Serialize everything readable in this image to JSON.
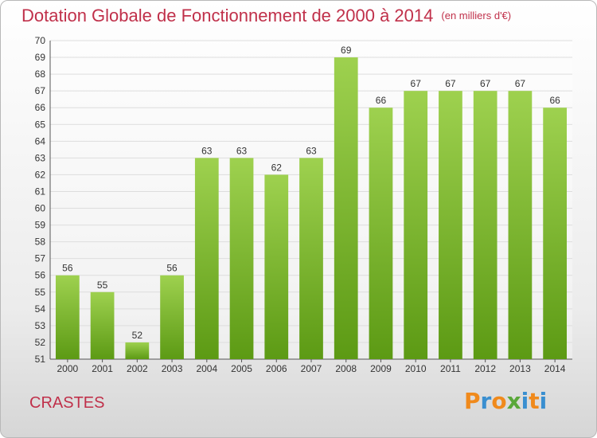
{
  "header": {
    "title": "Dotation Globale de Fonctionnement de 2000 à 2014",
    "unit": "(en milliers d'€)"
  },
  "footer": {
    "commune": "CRASTES",
    "logo_text": "Proxiti"
  },
  "colors": {
    "title": "#c0304a",
    "bar_top": "#9ed14f",
    "bar_bottom": "#5c9a14"
  },
  "chart_data": {
    "type": "bar",
    "categories": [
      "2000",
      "2001",
      "2002",
      "2003",
      "2004",
      "2005",
      "2006",
      "2007",
      "2008",
      "2009",
      "2010",
      "2011",
      "2012",
      "2013",
      "2014"
    ],
    "values": [
      56,
      55,
      52,
      56,
      63,
      63,
      62,
      63,
      69,
      66,
      67,
      67,
      67,
      67,
      66
    ],
    "ylim": [
      51,
      70
    ],
    "yticks": [
      51,
      52,
      53,
      54,
      55,
      56,
      57,
      58,
      59,
      60,
      61,
      62,
      63,
      64,
      65,
      66,
      67,
      68,
      69,
      70
    ],
    "grid": true,
    "data_labels": true
  }
}
